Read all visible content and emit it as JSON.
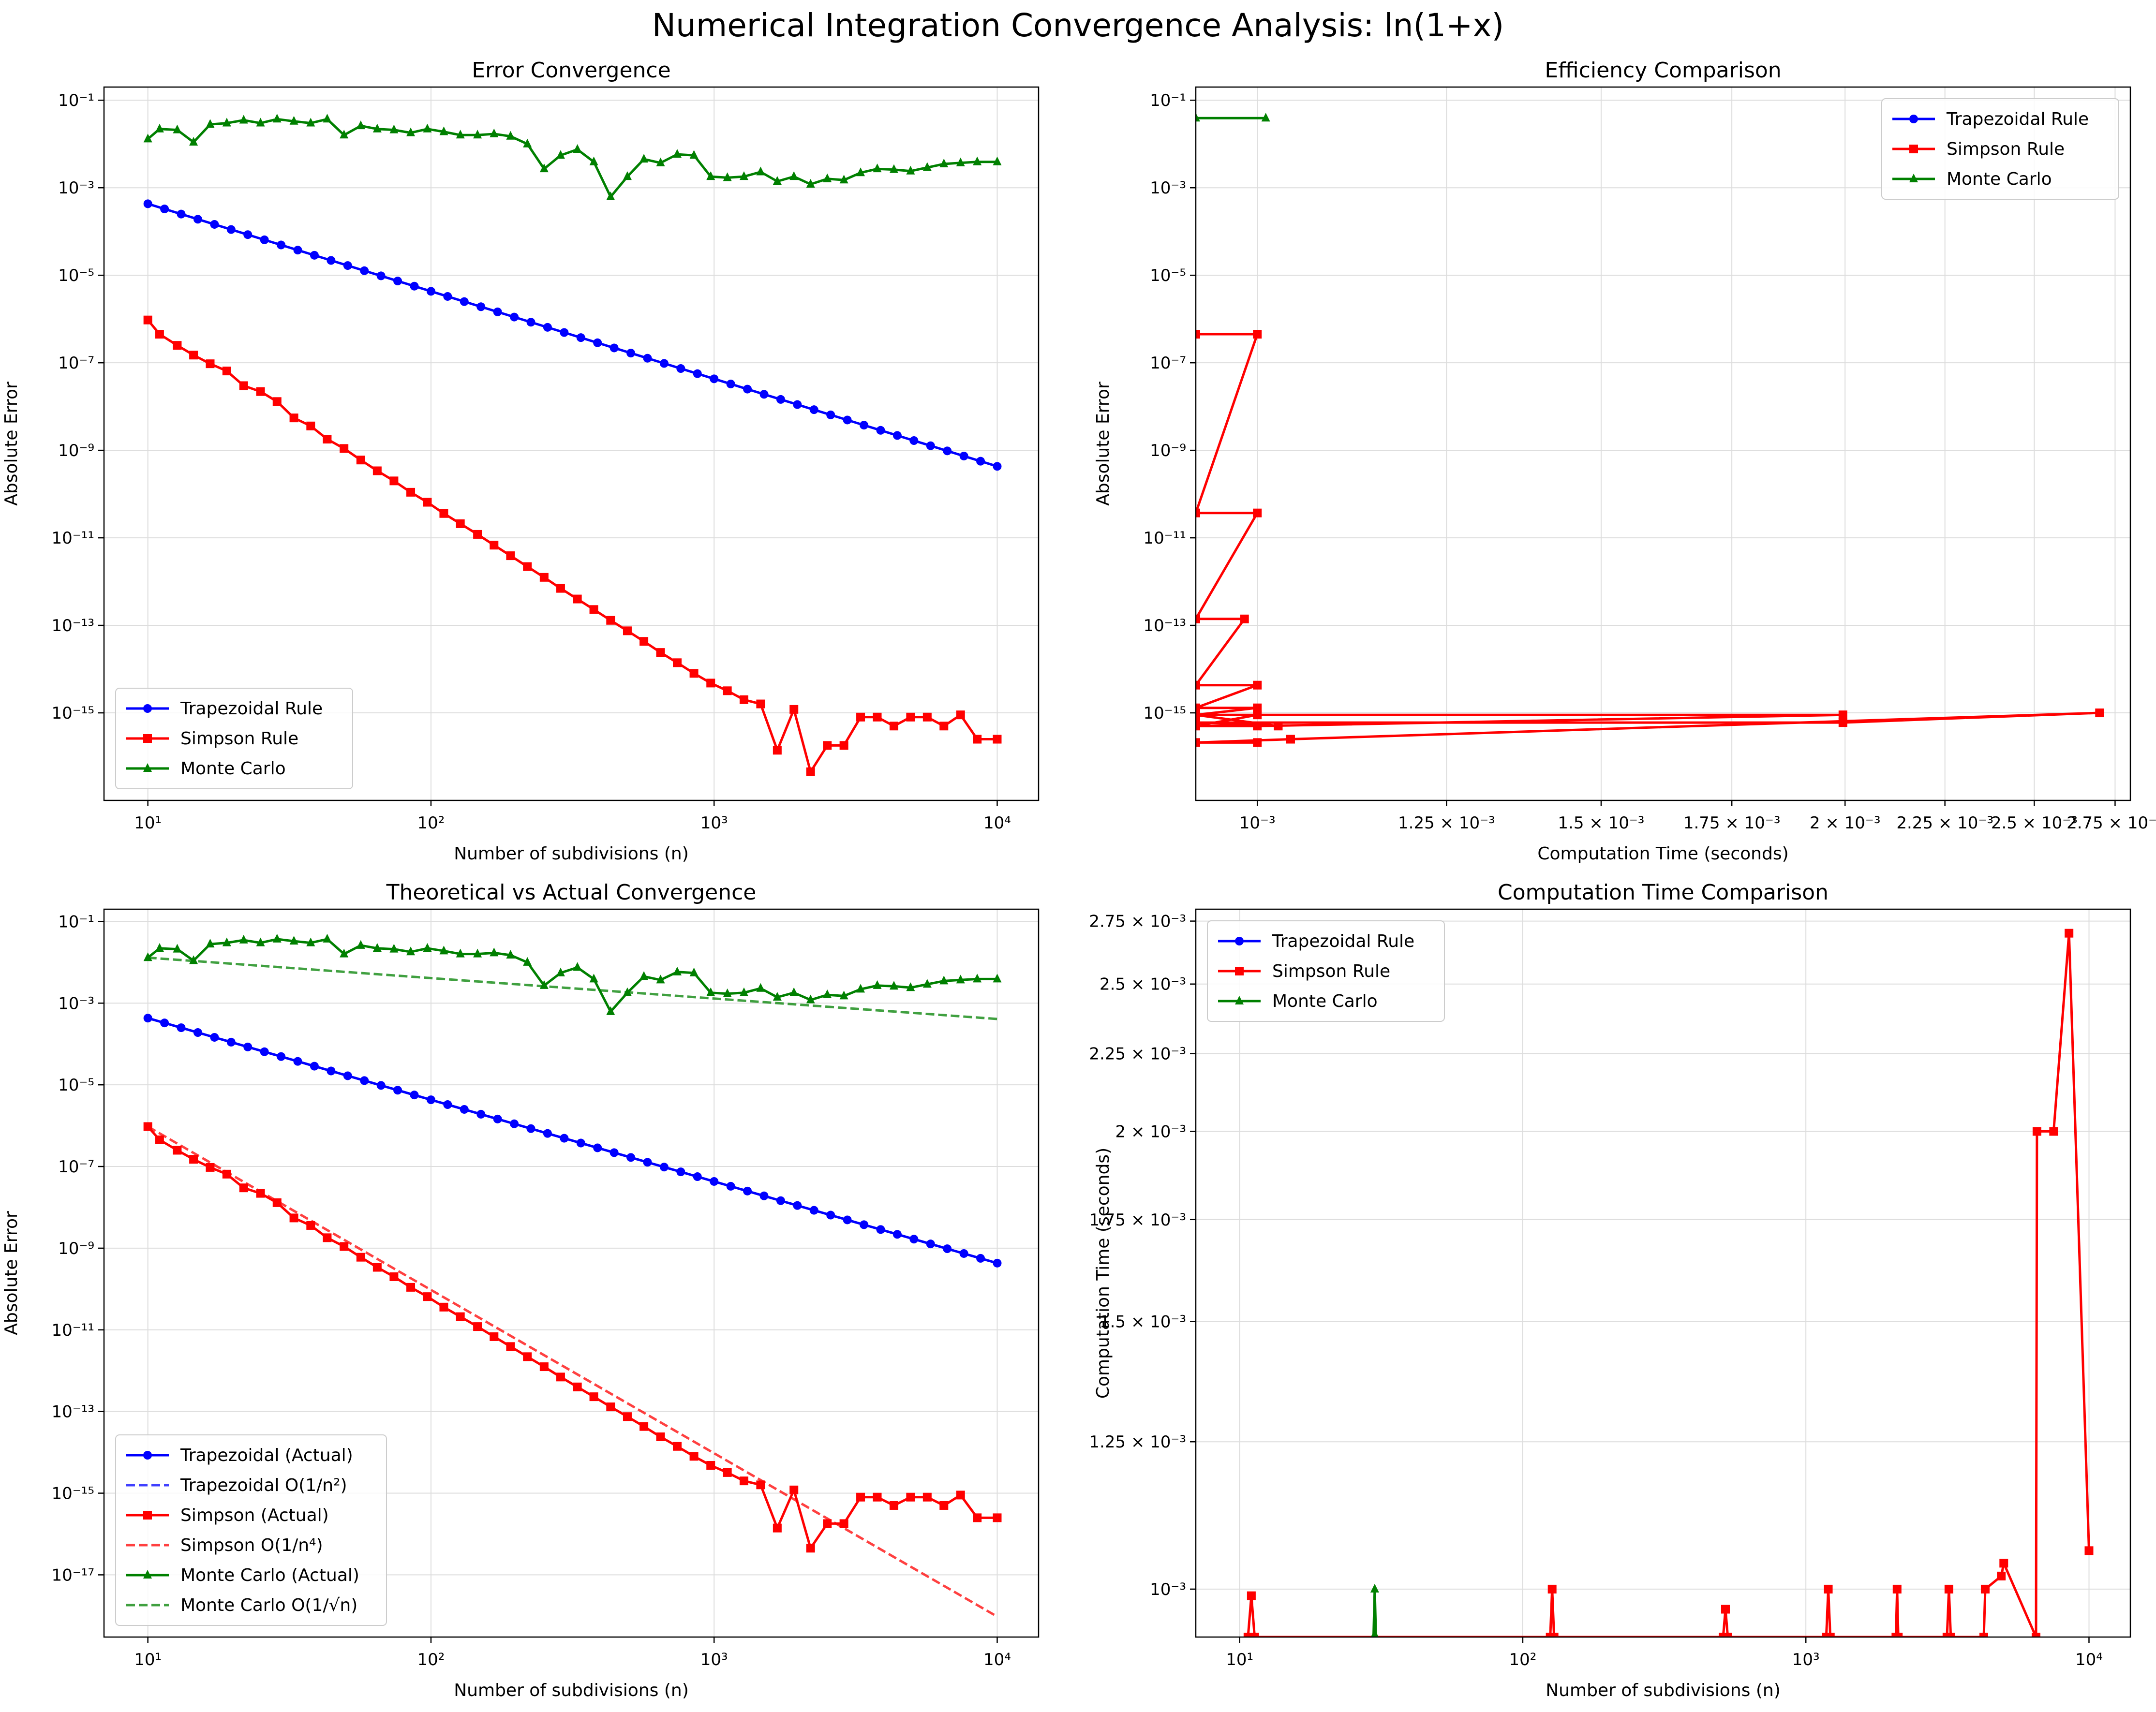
{
  "figure": {
    "title": "Numerical Integration Convergence Analysis: ln(1+x)"
  },
  "chart_data": [
    {
      "id": "error-convergence",
      "type": "line",
      "title": "Error Convergence",
      "xlabel": "Number of subdivisions (n)",
      "ylabel": "Absolute Error",
      "xscale": "log",
      "yscale": "log",
      "xlim": [
        7,
        14000
      ],
      "ylim": [
        1e-17,
        0.2
      ],
      "x_ticks": [
        {
          "v": 10,
          "label": "10¹"
        },
        {
          "v": 100,
          "label": "10²"
        },
        {
          "v": 1000,
          "label": "10³"
        },
        {
          "v": 10000,
          "label": "10⁴"
        }
      ],
      "y_ticks": [
        {
          "v": 0.1,
          "label": "10⁻¹"
        },
        {
          "v": 0.001,
          "label": "10⁻³"
        },
        {
          "v": 1e-05,
          "label": "10⁻⁵"
        },
        {
          "v": 1e-07,
          "label": "10⁻⁷"
        },
        {
          "v": 1e-09,
          "label": "10⁻⁹"
        },
        {
          "v": 1e-11,
          "label": "10⁻¹¹"
        },
        {
          "v": 1e-13,
          "label": "10⁻¹³"
        },
        {
          "v": 1e-15,
          "label": "10⁻¹⁵"
        }
      ],
      "grid": true,
      "legend": "lower-left",
      "series": [
        {
          "name": "Trapezoidal Rule",
          "color": "#0000ff",
          "marker": "circle",
          "style": "solid",
          "x": [
            10,
            100,
            1000,
            10000
          ],
          "y": [
            0.00043,
            4.3e-06,
            4.3e-08,
            4.3e-10
          ]
        },
        {
          "name": "Simpson Rule",
          "color": "#ff0000",
          "marker": "square",
          "style": "solid",
          "x": [
            10,
            11,
            12.7,
            14.5,
            16.6,
            19,
            21.8,
            25,
            28.6,
            32.8,
            37.6,
            43,
            49.3,
            56.5,
            64.6,
            74,
            84.8,
            97.1,
            111,
            127,
            146,
            167,
            191,
            219,
            251,
            287,
            329,
            376,
            431,
            494,
            565,
            647,
            741,
            849,
            973,
            1114,
            1275,
            1460,
            1672,
            1914,
            2192,
            2511,
            2875,
            3292,
            3770,
            4317,
            4943,
            5661,
            6482,
            7423,
            8500,
            10000
          ],
          "y": [
            9.5e-07,
            4.5e-07,
            2.5e-07,
            1.5e-07,
            9.5e-08,
            6.5e-08,
            3e-08,
            2.2e-08,
            1.3e-08,
            5.5e-09,
            3.6e-09,
            1.8e-09,
            1.1e-09,
            6e-10,
            3.4e-10,
            2e-10,
            1.1e-10,
            6.5e-11,
            3.6e-11,
            2.1e-11,
            1.2e-11,
            6.8e-12,
            3.9e-12,
            2.2e-12,
            1.25e-12,
            7e-13,
            4e-13,
            2.3e-13,
            1.3e-13,
            7.5e-14,
            4.3e-14,
            2.4e-14,
            1.4e-14,
            8e-15,
            4.8e-15,
            3.2e-15,
            2e-15,
            1.6e-15,
            1.4e-16,
            1.2e-15,
            4.5e-17,
            1.8e-16,
            1.8e-16,
            8e-16,
            8e-16,
            5e-16,
            8e-16,
            8e-16,
            5e-16,
            9e-16,
            2.5e-16,
            2.5e-16
          ]
        },
        {
          "name": "Monte Carlo",
          "color": "#008000",
          "marker": "triangle",
          "style": "solid",
          "x": [
            10,
            11,
            12.7,
            14.5,
            16.6,
            19,
            21.8,
            25,
            28.6,
            32.8,
            37.6,
            43,
            49.3,
            56.5,
            64.6,
            74,
            84.8,
            97.1,
            111,
            127,
            146,
            167,
            191,
            219,
            251,
            287,
            329,
            376,
            431,
            494,
            565,
            647,
            741,
            849,
            973,
            1114,
            1275,
            1460,
            1672,
            1914,
            2192,
            2511,
            2875,
            3292,
            3770,
            4317,
            4943,
            5661,
            6482,
            7423,
            8500,
            10000
          ],
          "y": [
            0.013,
            0.022,
            0.021,
            0.011,
            0.028,
            0.03,
            0.035,
            0.03,
            0.037,
            0.033,
            0.03,
            0.037,
            0.016,
            0.026,
            0.022,
            0.021,
            0.018,
            0.022,
            0.019,
            0.016,
            0.016,
            0.017,
            0.015,
            0.01,
            0.0027,
            0.0055,
            0.0075,
            0.0039,
            0.00062,
            0.0018,
            0.0045,
            0.0037,
            0.0058,
            0.0055,
            0.0018,
            0.0017,
            0.0018,
            0.0023,
            0.0014,
            0.0018,
            0.0012,
            0.0016,
            0.0015,
            0.0022,
            0.0027,
            0.0026,
            0.0024,
            0.0029,
            0.0035,
            0.0037,
            0.0039,
            0.0039
          ]
        }
      ]
    },
    {
      "id": "efficiency-comparison",
      "type": "line",
      "title": "Efficiency Comparison",
      "xlabel": "Computation Time (seconds)",
      "ylabel": "Absolute Error",
      "xscale": "log",
      "yscale": "log",
      "xlim": [
        0.00093,
        0.0028
      ],
      "ylim": [
        1e-17,
        0.2
      ],
      "x_ticks": [
        {
          "v": 0.001,
          "label": "10⁻³"
        },
        {
          "v": 0.00125,
          "label": "1.25 × 10⁻³"
        },
        {
          "v": 0.0015,
          "label": "1.5 × 10⁻³"
        },
        {
          "v": 0.00175,
          "label": "1.75 × 10⁻³"
        },
        {
          "v": 0.002,
          "label": "2 × 10⁻³"
        },
        {
          "v": 0.00225,
          "label": "2.25 × 10⁻³"
        },
        {
          "v": 0.0025,
          "label": "2.5 × 10⁻³"
        },
        {
          "v": 0.00275,
          "label": "2.75 × 10⁻³"
        }
      ],
      "y_ticks": [
        {
          "v": 0.1,
          "label": "10⁻¹"
        },
        {
          "v": 0.001,
          "label": "10⁻³"
        },
        {
          "v": 1e-05,
          "label": "10⁻⁵"
        },
        {
          "v": 1e-07,
          "label": "10⁻⁷"
        },
        {
          "v": 1e-09,
          "label": "10⁻⁹"
        },
        {
          "v": 1e-11,
          "label": "10⁻¹¹"
        },
        {
          "v": 1e-13,
          "label": "10⁻¹³"
        },
        {
          "v": 1e-15,
          "label": "10⁻¹⁵"
        }
      ],
      "grid": true,
      "legend": "upper-right",
      "series": [
        {
          "name": "Trapezoidal Rule",
          "color": "#0000ff",
          "marker": "circle",
          "style": "solid",
          "x": [],
          "y": []
        },
        {
          "name": "Simpson Rule",
          "color": "#ff0000",
          "marker": "square",
          "style": "solid",
          "x": [
            0.00093,
            0.001,
            0.00093,
            0.001,
            0.00093,
            0.000985,
            0.00093,
            0.001,
            0.00093,
            0.001,
            0.00093,
            0.001,
            0.00093,
            0.001,
            0.001995,
            0.00093,
            0.001025,
            0.00093,
            0.001995,
            0.0027,
            0.00104,
            0.00093,
            0.001
          ],
          "y": [
            4.5e-07,
            4.5e-07,
            3.7e-11,
            3.7e-11,
            1.4e-13,
            1.4e-13,
            4.3e-15,
            4.3e-15,
            1.3e-15,
            1.3e-15,
            9e-16,
            9e-16,
            5e-16,
            5e-16,
            9e-16,
            9e-16,
            5e-16,
            6e-16,
            6e-16,
            1e-15,
            2.5e-16,
            2.1e-16,
            2.1e-16
          ]
        },
        {
          "name": "Monte Carlo",
          "color": "#008000",
          "marker": "triangle",
          "style": "solid",
          "x": [
            0.00093,
            0.00101
          ],
          "y": [
            0.039,
            0.039
          ]
        }
      ]
    },
    {
      "id": "theoretical-vs-actual",
      "type": "line",
      "title": "Theoretical vs Actual Convergence",
      "xlabel": "Number of subdivisions (n)",
      "ylabel": "Absolute Error",
      "xscale": "log",
      "yscale": "log",
      "xlim": [
        7,
        14000
      ],
      "ylim": [
        3e-19,
        0.2
      ],
      "x_ticks": [
        {
          "v": 10,
          "label": "10¹"
        },
        {
          "v": 100,
          "label": "10²"
        },
        {
          "v": 1000,
          "label": "10³"
        },
        {
          "v": 10000,
          "label": "10⁴"
        }
      ],
      "y_ticks": [
        {
          "v": 0.1,
          "label": "10⁻¹"
        },
        {
          "v": 0.001,
          "label": "10⁻³"
        },
        {
          "v": 1e-05,
          "label": "10⁻⁵"
        },
        {
          "v": 1e-07,
          "label": "10⁻⁷"
        },
        {
          "v": 1e-09,
          "label": "10⁻⁹"
        },
        {
          "v": 1e-11,
          "label": "10⁻¹¹"
        },
        {
          "v": 1e-13,
          "label": "10⁻¹³"
        },
        {
          "v": 1e-15,
          "label": "10⁻¹⁵"
        },
        {
          "v": 1e-17,
          "label": "10⁻¹⁷"
        }
      ],
      "grid": true,
      "legend": "lower-left",
      "series": [
        {
          "name": "Trapezoidal (Actual)",
          "color": "#0000ff",
          "marker": "circle",
          "style": "solid",
          "x": [
            10,
            100,
            1000,
            10000
          ],
          "y": [
            0.00043,
            4.3e-06,
            4.3e-08,
            4.3e-10
          ]
        },
        {
          "name": "Trapezoidal O(1/n²)",
          "color": "#0000ff",
          "marker": "none",
          "style": "dashed",
          "x": [
            10,
            10000
          ],
          "y": [
            0.00043,
            4.3e-10
          ]
        },
        {
          "name": "Simpson (Actual)",
          "color": "#ff0000",
          "marker": "square",
          "style": "solid",
          "x": [
            10,
            11,
            12.7,
            14.5,
            16.6,
            19,
            21.8,
            25,
            28.6,
            32.8,
            37.6,
            43,
            49.3,
            56.5,
            64.6,
            74,
            84.8,
            97.1,
            111,
            127,
            146,
            167,
            191,
            219,
            251,
            287,
            329,
            376,
            431,
            494,
            565,
            647,
            741,
            849,
            973,
            1114,
            1275,
            1460,
            1672,
            1914,
            2192,
            2511,
            2875,
            3292,
            3770,
            4317,
            4943,
            5661,
            6482,
            7423,
            8500,
            10000
          ],
          "y": [
            9.5e-07,
            4.5e-07,
            2.5e-07,
            1.5e-07,
            9.5e-08,
            6.5e-08,
            3e-08,
            2.2e-08,
            1.3e-08,
            5.5e-09,
            3.6e-09,
            1.8e-09,
            1.1e-09,
            6e-10,
            3.4e-10,
            2e-10,
            1.1e-10,
            6.5e-11,
            3.6e-11,
            2.1e-11,
            1.2e-11,
            6.8e-12,
            3.9e-12,
            2.2e-12,
            1.25e-12,
            7e-13,
            4e-13,
            2.3e-13,
            1.3e-13,
            7.5e-14,
            4.3e-14,
            2.4e-14,
            1.4e-14,
            8e-15,
            4.8e-15,
            3.2e-15,
            2e-15,
            1.6e-15,
            1.4e-16,
            1.2e-15,
            4.5e-17,
            1.8e-16,
            1.8e-16,
            8e-16,
            8e-16,
            5e-16,
            8e-16,
            8e-16,
            5e-16,
            9e-16,
            2.5e-16,
            2.5e-16
          ]
        },
        {
          "name": "Simpson O(1/n⁴)",
          "color": "#ff0000",
          "marker": "none",
          "style": "dashed",
          "x": [
            10,
            10000
          ],
          "y": [
            9.5e-07,
            9.5e-19
          ]
        },
        {
          "name": "Monte Carlo (Actual)",
          "color": "#008000",
          "marker": "triangle",
          "style": "solid",
          "x": [
            10,
            11,
            12.7,
            14.5,
            16.6,
            19,
            21.8,
            25,
            28.6,
            32.8,
            37.6,
            43,
            49.3,
            56.5,
            64.6,
            74,
            84.8,
            97.1,
            111,
            127,
            146,
            167,
            191,
            219,
            251,
            287,
            329,
            376,
            431,
            494,
            565,
            647,
            741,
            849,
            973,
            1114,
            1275,
            1460,
            1672,
            1914,
            2192,
            2511,
            2875,
            3292,
            3770,
            4317,
            4943,
            5661,
            6482,
            7423,
            8500,
            10000
          ],
          "y": [
            0.013,
            0.022,
            0.021,
            0.011,
            0.028,
            0.03,
            0.035,
            0.03,
            0.037,
            0.033,
            0.03,
            0.037,
            0.016,
            0.026,
            0.022,
            0.021,
            0.018,
            0.022,
            0.019,
            0.016,
            0.016,
            0.017,
            0.015,
            0.01,
            0.0027,
            0.0055,
            0.0075,
            0.0039,
            0.00062,
            0.0018,
            0.0045,
            0.0037,
            0.0058,
            0.0055,
            0.0018,
            0.0017,
            0.0018,
            0.0023,
            0.0014,
            0.0018,
            0.0012,
            0.0016,
            0.0015,
            0.0022,
            0.0027,
            0.0026,
            0.0024,
            0.0029,
            0.0035,
            0.0037,
            0.0039,
            0.0039
          ]
        },
        {
          "name": "Monte Carlo O(1/√n)",
          "color": "#008000",
          "marker": "none",
          "style": "dashed",
          "x": [
            10,
            10000
          ],
          "y": [
            0.013,
            0.00041
          ]
        }
      ]
    },
    {
      "id": "computation-time-comparison",
      "type": "line",
      "title": "Computation Time Comparison",
      "xlabel": "Number of subdivisions (n)",
      "ylabel": "Computation Time (seconds)",
      "xscale": "log",
      "yscale": "log",
      "xlim": [
        7,
        14000
      ],
      "ylim": [
        0.00093,
        0.0028
      ],
      "x_ticks": [
        {
          "v": 10,
          "label": "10¹"
        },
        {
          "v": 100,
          "label": "10²"
        },
        {
          "v": 1000,
          "label": "10³"
        },
        {
          "v": 10000,
          "label": "10⁴"
        }
      ],
      "y_ticks": [
        {
          "v": 0.001,
          "label": "10⁻³"
        },
        {
          "v": 0.00125,
          "label": "1.25 × 10⁻³"
        },
        {
          "v": 0.0015,
          "label": "1.5 × 10⁻³"
        },
        {
          "v": 0.00175,
          "label": "1.75 × 10⁻³"
        },
        {
          "v": 0.002,
          "label": "2 × 10⁻³"
        },
        {
          "v": 0.00225,
          "label": "2.25 × 10⁻³"
        },
        {
          "v": 0.0025,
          "label": "2.5 × 10⁻³"
        },
        {
          "v": 0.00275,
          "label": "2.75 × 10⁻³"
        }
      ],
      "grid": true,
      "legend": "upper-left",
      "series": [
        {
          "name": "Trapezoidal Rule",
          "color": "#0000ff",
          "marker": "circle",
          "style": "solid",
          "x": [],
          "y": []
        },
        {
          "name": "Simpson Rule",
          "color": "#ff0000",
          "marker": "square",
          "style": "solid",
          "x": [
            10.7,
            11,
            11.3,
            125,
            127,
            129,
            510,
            520,
            530,
            1180,
            1200,
            1220,
            2080,
            2100,
            2120,
            3150,
            3200,
            3250,
            4250,
            4300,
            4900,
            5000,
            6500,
            6550,
            7500,
            8500,
            10000
          ],
          "y": [
            0.00093,
            0.00099,
            0.00093,
            0.00093,
            0.001,
            0.00093,
            0.00093,
            0.00097,
            0.00093,
            0.00093,
            0.001,
            0.00093,
            0.00093,
            0.001,
            0.00093,
            0.00093,
            0.001,
            0.00093,
            0.00093,
            0.001,
            0.00102,
            0.00104,
            0.00093,
            0.002,
            0.002,
            0.0027,
            0.00106
          ]
        },
        {
          "name": "Monte Carlo",
          "color": "#008000",
          "marker": "triangle",
          "style": "solid",
          "x": [
            29.7,
            30,
            30.3
          ],
          "y": [
            0.00093,
            0.001,
            0.00093
          ]
        }
      ]
    }
  ]
}
